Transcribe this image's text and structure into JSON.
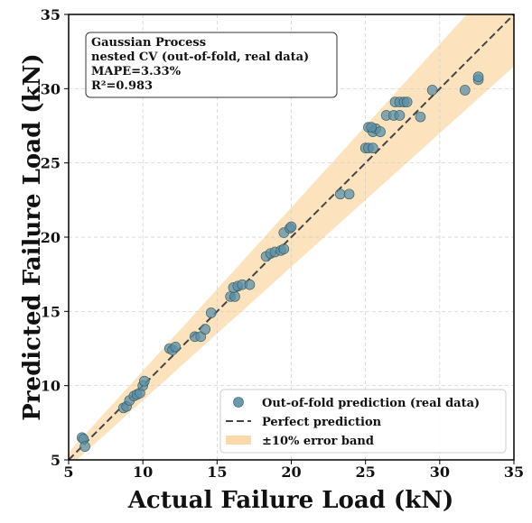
{
  "chart_data": {
    "type": "scatter",
    "xlabel": "Actual Failure Load (kN)",
    "ylabel": "Predicted Failure Load (kN)",
    "annotation": [
      "Gaussian Process",
      "nested CV (out-of-fold, real data)",
      "MAPE=3.33%",
      "R²=0.983"
    ],
    "xlim": [
      5,
      35
    ],
    "ylim": [
      5,
      35
    ],
    "xticks": [
      5,
      10,
      15,
      20,
      25,
      30,
      35
    ],
    "yticks": [
      5,
      10,
      15,
      20,
      25,
      30,
      35
    ],
    "grid": true,
    "legend": "lower right",
    "error_band": 10,
    "band_color": "#fbd9a8",
    "line_color": "#444444",
    "series": [
      {
        "name": "Out-of-fold prediction (real data)",
        "color": "#5a8fa8",
        "x": [
          5.9,
          6.0,
          6.1,
          8.7,
          8.9,
          9.1,
          9.4,
          9.6,
          9.8,
          10.0,
          10.1,
          11.8,
          12.0,
          12.2,
          13.5,
          13.9,
          14.2,
          14.6,
          15.9,
          16.2,
          16.1,
          16.4,
          16.7,
          17.2,
          18.3,
          18.6,
          18.9,
          19.3,
          19.5,
          19.5,
          19.9,
          20.0,
          23.3,
          23.9,
          25.0,
          25.2,
          25.5,
          25.2,
          25.5,
          25.7,
          26.0,
          25.4,
          26.4,
          26.9,
          27.3,
          27.0,
          27.3,
          27.6,
          27.8,
          28.7,
          29.5,
          31.7,
          32.6,
          32.6
        ],
        "values": [
          6.5,
          6.4,
          5.9,
          8.5,
          8.6,
          9.0,
          9.3,
          9.4,
          9.5,
          10.0,
          10.3,
          12.5,
          12.4,
          12.6,
          13.3,
          13.3,
          13.8,
          14.9,
          16.0,
          16.0,
          16.6,
          16.7,
          16.8,
          16.8,
          18.7,
          18.9,
          19.0,
          19.1,
          19.2,
          20.3,
          20.6,
          20.7,
          22.9,
          22.9,
          26.0,
          26.0,
          26.0,
          27.4,
          27.1,
          27.3,
          27.1,
          27.4,
          28.2,
          28.2,
          28.2,
          29.1,
          29.1,
          29.1,
          29.1,
          28.1,
          29.9,
          29.9,
          30.6,
          30.8
        ]
      }
    ],
    "line_name": "Perfect prediction",
    "band_name": "±10% error band"
  }
}
